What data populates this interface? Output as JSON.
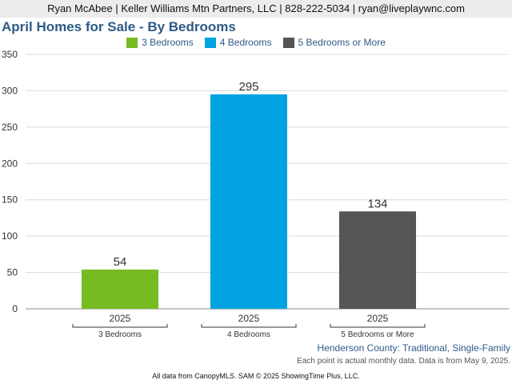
{
  "header": {
    "contact": "Ryan McAbee | Keller Williams Mtn Partners, LLC | 828-222-5034 | ryan@liveplaywnc.com"
  },
  "chart_data": {
    "type": "bar",
    "title": "April Homes for Sale - By Bedrooms",
    "series": [
      {
        "name": "3 Bedrooms",
        "category": "3 Bedrooms",
        "x": "2025",
        "value": 54,
        "color": "#76bb21"
      },
      {
        "name": "4 Bedrooms",
        "category": "4 Bedrooms",
        "x": "2025",
        "value": 295,
        "color": "#00a3e0"
      },
      {
        "name": "5 Bedrooms or More",
        "category": "5 Bedrooms or More",
        "x": "2025",
        "value": 134,
        "color": "#555555"
      }
    ],
    "ylim": [
      0,
      350
    ],
    "yticks": [
      0,
      50,
      100,
      150,
      200,
      250,
      300,
      350
    ],
    "grid": true,
    "legend": "top-center"
  },
  "subtitle": "Henderson County: Traditional, Single-Family",
  "note": "Each point is actual monthly data. Data is from May 9, 2025.",
  "footer": "All data from CanopyMLS. SAM © 2025 ShowingTime Plus, LLC."
}
